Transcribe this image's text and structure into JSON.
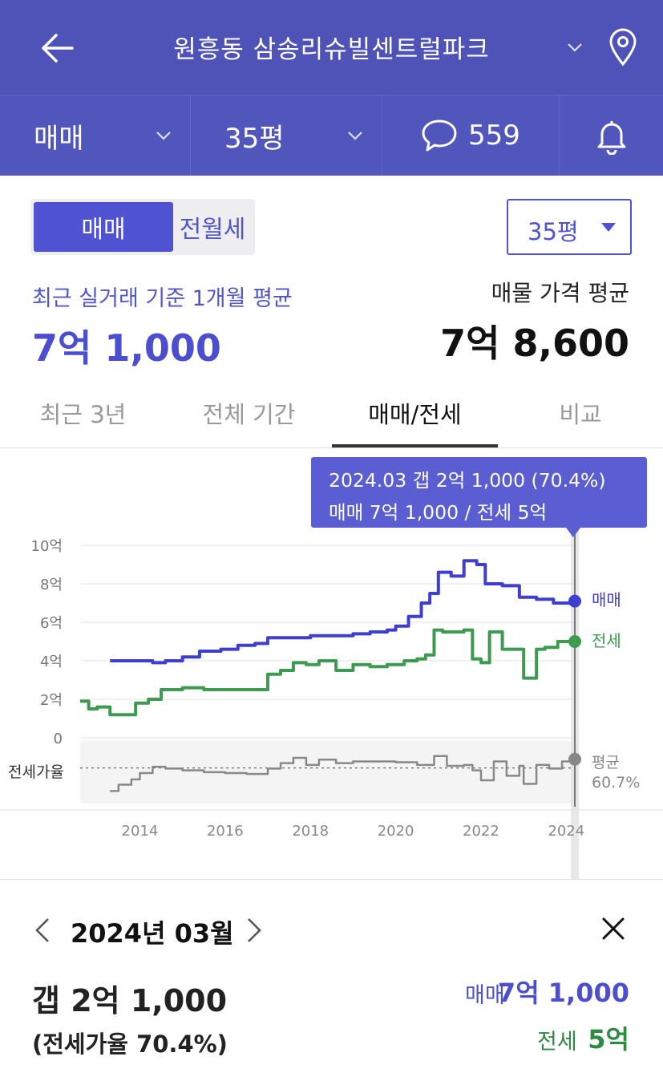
{
  "header": {
    "title": "원흥동 삼송리슈빌센트럴파크"
  },
  "filters": {
    "trade_type": "매매",
    "size": "35평",
    "comment_count": "559"
  },
  "segment": {
    "active": "매매",
    "inactive": "전월세"
  },
  "size_select": "35평",
  "summary": {
    "recent_label": "최근 실거래 기준 1개월 평균",
    "recent_value": "7억 1,000",
    "listing_label": "매물 가격 평균",
    "listing_value": "7억 8,600"
  },
  "tabs": [
    "최근 3년",
    "전체 기간",
    "매매/전세",
    "비교"
  ],
  "tooltip": {
    "line1": "2024.03  갭 2억 1,000 (70.4%)",
    "line2": "매매 7억 1,000 / 전세 5억"
  },
  "colors": {
    "header": "#4f53b8",
    "sale": "#3e3fd0",
    "jeonse": "#3d9a50",
    "ratio": "#888888"
  },
  "chart_data": {
    "type": "line",
    "y_ticks": [
      "10억",
      "8억",
      "6억",
      "4억",
      "2억",
      "0"
    ],
    "ylim": [
      0,
      10
    ],
    "xlim": [
      2012.6,
      2024.2
    ],
    "x_ticks": [
      "2014",
      "2016",
      "2018",
      "2020",
      "2022",
      "2024"
    ],
    "ratio_axis_label": "전세가율",
    "series": [
      {
        "name": "매매",
        "x": [
          2013.3,
          2013.8,
          2014.3,
          2014.6,
          2015.0,
          2015.4,
          2015.9,
          2016.3,
          2016.7,
          2017.0,
          2017.5,
          2018.0,
          2018.6,
          2019.0,
          2019.4,
          2019.8,
          2020.0,
          2020.3,
          2020.6,
          2020.8,
          2021.0,
          2021.3,
          2021.6,
          2021.9,
          2022.1,
          2022.5,
          2022.9,
          2023.3,
          2023.7,
          2024.0,
          2024.2
        ],
        "y": [
          4.0,
          4.0,
          3.9,
          4.0,
          4.2,
          4.5,
          4.6,
          4.8,
          4.9,
          5.2,
          5.2,
          5.3,
          5.3,
          5.4,
          5.5,
          5.6,
          5.8,
          6.3,
          7.0,
          7.5,
          8.6,
          8.4,
          9.2,
          9.0,
          8.0,
          7.9,
          7.3,
          7.2,
          7.0,
          7.0,
          7.1
        ]
      },
      {
        "name": "전세",
        "x": [
          2012.6,
          2012.8,
          2013.0,
          2013.3,
          2013.6,
          2013.9,
          2014.2,
          2014.5,
          2015.0,
          2015.5,
          2016.0,
          2016.5,
          2017.0,
          2017.3,
          2017.6,
          2017.9,
          2018.2,
          2018.6,
          2019.0,
          2019.4,
          2019.8,
          2020.2,
          2020.5,
          2020.7,
          2020.9,
          2021.1,
          2021.4,
          2021.6,
          2021.8,
          2022.0,
          2022.2,
          2022.5,
          2022.8,
          2023.0,
          2023.3,
          2023.5,
          2023.8,
          2024.0,
          2024.2
        ],
        "y": [
          1.9,
          1.5,
          1.6,
          1.2,
          1.2,
          1.8,
          2.0,
          2.5,
          2.6,
          2.5,
          2.5,
          2.5,
          3.3,
          3.5,
          3.9,
          3.8,
          4.0,
          3.5,
          3.8,
          3.7,
          3.8,
          4.0,
          4.1,
          4.3,
          5.6,
          5.5,
          5.5,
          5.6,
          4.1,
          3.9,
          5.5,
          4.6,
          4.6,
          3.1,
          4.6,
          4.7,
          5.0,
          5.0,
          5.0
        ]
      },
      {
        "name": "전세가율",
        "x": [
          2013.3,
          2013.5,
          2013.8,
          2014.0,
          2014.3,
          2014.6,
          2015.0,
          2015.5,
          2016.0,
          2016.5,
          2017.0,
          2017.3,
          2017.6,
          2017.9,
          2018.2,
          2018.6,
          2019.0,
          2019.5,
          2020.0,
          2020.5,
          2020.9,
          2021.2,
          2021.6,
          2021.8,
          2022.0,
          2022.3,
          2022.6,
          2022.9,
          2023.0,
          2023.3,
          2023.6,
          2023.9,
          2024.2
        ],
        "y": [
          35,
          42,
          48,
          55,
          62,
          60,
          58,
          56,
          55,
          54,
          60,
          66,
          72,
          64,
          70,
          66,
          68,
          68,
          67,
          64,
          74,
          63,
          64,
          58,
          47,
          68,
          52,
          63,
          43,
          64,
          60,
          68,
          70.4
        ]
      }
    ],
    "ratio_average_label": "평균",
    "ratio_average_value": "60.7%",
    "ratio_average": 60.7,
    "legend": [
      "매매",
      "전세"
    ],
    "selected_x": 2024.2
  },
  "detail": {
    "date": "2024년 03월",
    "gap": "갭 2억 1,000",
    "ratio": "(전세가율 70.4%)",
    "sale_label": "매매",
    "sale_value": "7억 1,000",
    "jeonse_label": "전세",
    "jeonse_value": "5억"
  }
}
